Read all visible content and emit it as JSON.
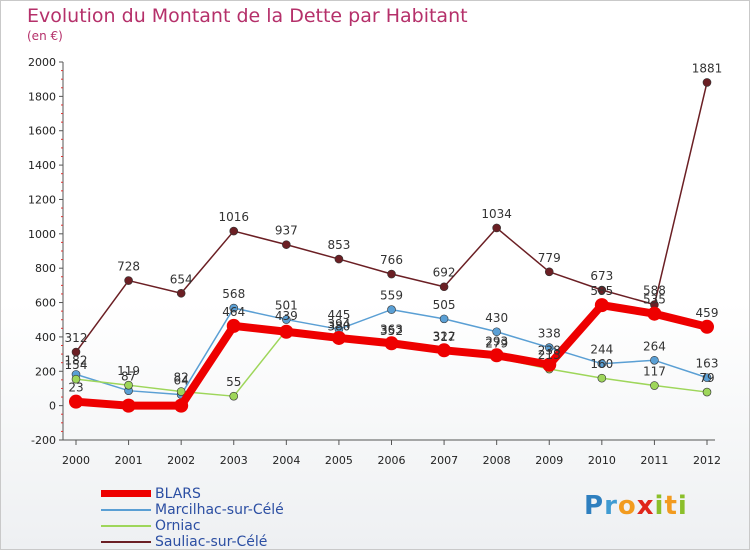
{
  "title": "Evolution du Montant de la Dette par Habitant",
  "subtitle": "(en €)",
  "logo": {
    "letters": [
      "P",
      "r",
      "o",
      "x",
      "i",
      "t",
      "i"
    ],
    "colors": [
      "#2e7fbf",
      "#3f9bd2",
      "#f29b1f",
      "#e0261b",
      "#8bbf2a",
      "#f29b1f",
      "#8bbf2a"
    ]
  },
  "chart_data": {
    "type": "line",
    "x": [
      "2000",
      "2001",
      "2002",
      "2003",
      "2004",
      "2005",
      "2006",
      "2007",
      "2008",
      "2009",
      "2010",
      "2011",
      "2012"
    ],
    "ylim": [
      -200,
      2000
    ],
    "yticks": [
      "-200",
      "0",
      "200",
      "400",
      "600",
      "800",
      "1000",
      "1200",
      "1400",
      "1600",
      "1800",
      "2000"
    ],
    "grid": false,
    "legend_position": "bottom-left",
    "series": [
      {
        "name": "Sauliac-sur-Célé",
        "color": "#6b1f24",
        "width": 1.5,
        "marker": 4,
        "values": [
          312,
          728,
          654,
          1016,
          937,
          853,
          766,
          692,
          1034,
          779,
          673,
          588,
          1881
        ],
        "labels": [
          "312",
          "728",
          "654",
          "1016",
          "937",
          "853",
          "766",
          "692",
          "1034",
          "779",
          "673",
          "588",
          "1881"
        ]
      },
      {
        "name": "Marcilhac-sur-Célé",
        "color": "#5a9fd4",
        "width": 1.5,
        "marker": 4,
        "values": [
          182,
          87,
          64,
          568,
          501,
          445,
          559,
          505,
          430,
          338,
          244,
          264,
          163
        ],
        "labels": [
          "182",
          "87",
          "64",
          "568",
          "501",
          "445",
          "559",
          "505",
          "430",
          "338",
          "244",
          "264",
          "163"
        ]
      },
      {
        "name": "Orniac",
        "color": "#9ed65a",
        "width": 1.5,
        "marker": 4,
        "values": [
          154,
          119,
          82,
          55,
          439,
          380,
          352,
          317,
          279,
          213,
          160,
          117,
          79
        ],
        "labels": [
          "154",
          "119",
          "82",
          "55",
          "439",
          "380",
          "352",
          "317",
          "279",
          "213",
          "160",
          "117",
          "79"
        ]
      },
      {
        "name": "BLARS",
        "color": "#ee0000",
        "width": 8,
        "marker": 7,
        "values": [
          23,
          0,
          0,
          464,
          430,
          394,
          363,
          322,
          293,
          238,
          585,
          535,
          459
        ],
        "labels": [
          "23",
          "",
          "",
          "464",
          "",
          "394",
          "363",
          "322",
          "293",
          "238",
          "585",
          "535",
          "459"
        ]
      }
    ],
    "legend": [
      "BLARS",
      "Marcilhac-sur-Célé",
      "Orniac",
      "Sauliac-sur-Célé"
    ]
  }
}
